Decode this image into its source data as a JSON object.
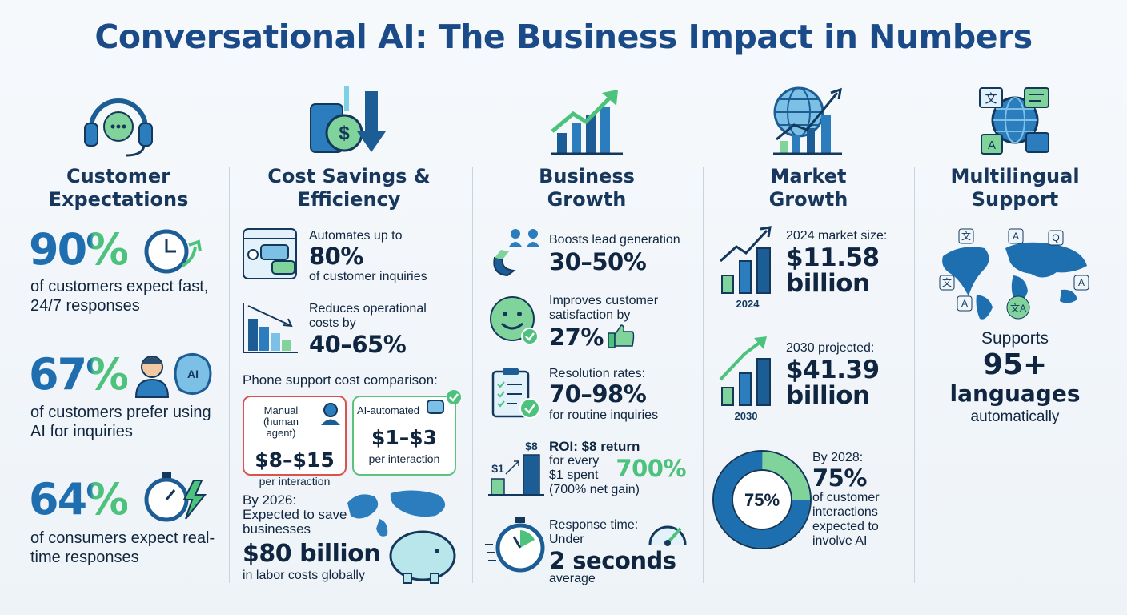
{
  "title": "Conversational AI: The Business Impact in Numbers",
  "customer_expectations": {
    "heading": "Customer Expectations",
    "icon_label": "AI",
    "stats": [
      {
        "value": "90%",
        "text": "of customers expect fast, 24/7 responses"
      },
      {
        "value": "67%",
        "text": "of customers prefer using AI for inquiries"
      },
      {
        "value": "64%",
        "text": "of consumers expect real-time responses"
      }
    ]
  },
  "cost_savings": {
    "heading": "Cost Savings & Efficiency",
    "items": [
      {
        "lead": "Automates up to",
        "value": "80%",
        "text": "of customer inquiries"
      },
      {
        "lead": "Reduces operational costs by",
        "value": "40–65%"
      }
    ],
    "comparison": {
      "title": "Phone support cost comparison:",
      "cards": [
        {
          "label": "Manual (human agent)",
          "value": "$8–$15",
          "text": "per interaction"
        },
        {
          "label": "AI-automated",
          "value": "$1–$3",
          "text": "per interaction"
        }
      ]
    },
    "projection": {
      "lead": "By 2026: Expected to save businesses",
      "value": "$80 billion",
      "text": "in labor costs globally"
    }
  },
  "business_growth": {
    "heading": "Business Growth",
    "items": [
      {
        "lead": "Boosts lead generation",
        "value": "30–50%"
      },
      {
        "lead": "Improves customer satisfaction by",
        "value": "27%"
      },
      {
        "lead": "Resolution rates:",
        "value": "70–98%",
        "text": "for routine inquiries"
      }
    ],
    "roi": {
      "title": "ROI: $8 return",
      "text": "for every $1 spent (700% net gain)",
      "highlight": "700%",
      "bar_labels": [
        "$1",
        "$8"
      ]
    },
    "response": {
      "lead": "Response time: Under",
      "value": "2 seconds",
      "text": "average"
    }
  },
  "market_growth": {
    "heading": "Market Growth",
    "items": [
      {
        "chart_label": "2024",
        "lead": "2024 market size:",
        "value": "$11.58 billion"
      },
      {
        "chart_label": "2030",
        "lead": "2030 projected:",
        "value": "$41.39 billion"
      }
    ],
    "donut": {
      "percent": 75,
      "percent_label": "75%",
      "lead": "By 2028:",
      "value": "75%",
      "text": "of customer interactions expected to involve AI"
    }
  },
  "multilingual": {
    "heading": "Multilingual Support",
    "icon_glyphs": [
      "文",
      "A"
    ],
    "map_glyphs": [
      "文",
      "A",
      "Q",
      "文",
      "A",
      "A",
      "文A"
    ],
    "lead": "Supports",
    "value": "95+",
    "unit": "languages",
    "text": "automatically"
  }
}
